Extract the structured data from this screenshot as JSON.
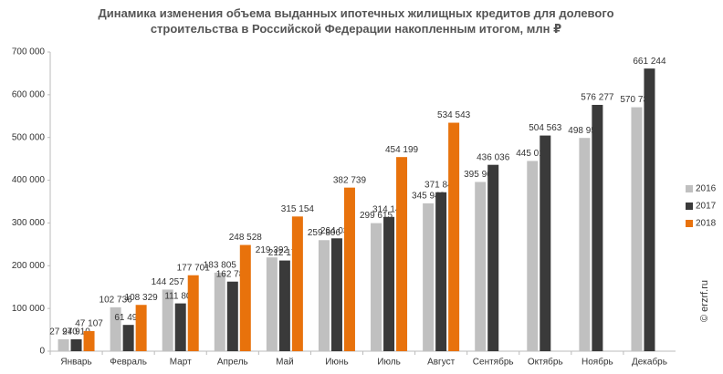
{
  "chart_data": {
    "type": "bar",
    "title": "Динамика изменения объема выданных ипотечных жилищных кредитов для долевого строительства  в Российской Федерации накопленным итогом, млн ₽",
    "watermark": "© erzrf.ru",
    "categories": [
      "Январь",
      "Февраль",
      "Март",
      "Апрель",
      "Май",
      "Июнь",
      "Июль",
      "Август",
      "Сентябрь",
      "Октябрь",
      "Ноябрь",
      "Декабрь"
    ],
    "series": [
      {
        "name": "2016",
        "color": "#c0c0c0",
        "label_color": "#444444",
        "values": [
          27940,
          102736,
          144257,
          183805,
          219392,
          259806,
          299615,
          345942,
          395961,
          445019,
          498955,
          570736
        ],
        "value_labels": [
          "27 940",
          "102 736",
          "144 257",
          "183 805",
          "219 392",
          "259 806",
          "299 615",
          "345 942",
          "395 961",
          "445 019",
          "498 955",
          "570 736"
        ]
      },
      {
        "name": "2017",
        "color": "#3a3a3a",
        "label_color": "#111111",
        "values": [
          27910,
          61497,
          111807,
          162783,
          212172,
          264036,
          314146,
          371846,
          436036,
          504563,
          576277,
          661244
        ],
        "value_labels": [
          "27 910",
          "61 497",
          "111 807",
          "162 783",
          "212 172",
          "264 036",
          "314 146",
          "371 846",
          "436 036",
          "504 563",
          "576 277",
          "661 244"
        ]
      },
      {
        "name": "2018",
        "color": "#e8720c",
        "label_color": "#e8720c",
        "values": [
          47107,
          108329,
          177701,
          248528,
          315154,
          382739,
          454199,
          534543,
          null,
          null,
          null,
          null
        ],
        "value_labels": [
          "47 107",
          "108 329",
          "177 701",
          "248 528",
          "315 154",
          "382 739",
          "454 199",
          "534 543",
          null,
          null,
          null,
          null
        ]
      }
    ],
    "ylim": [
      0,
      700000
    ],
    "yticks": [
      0,
      {
        "value": 100000,
        "label": "100 000"
      },
      {
        "value": 200000,
        "label": "200 000"
      },
      {
        "value": 300000,
        "label": "300 000"
      },
      {
        "value": 400000,
        "label": "400 000"
      },
      {
        "value": 500000,
        "label": "500 000"
      },
      {
        "value": 600000,
        "label": "600 000"
      },
      {
        "value": 700000,
        "label": "700 000"
      }
    ],
    "grid": false,
    "legend": "right"
  }
}
